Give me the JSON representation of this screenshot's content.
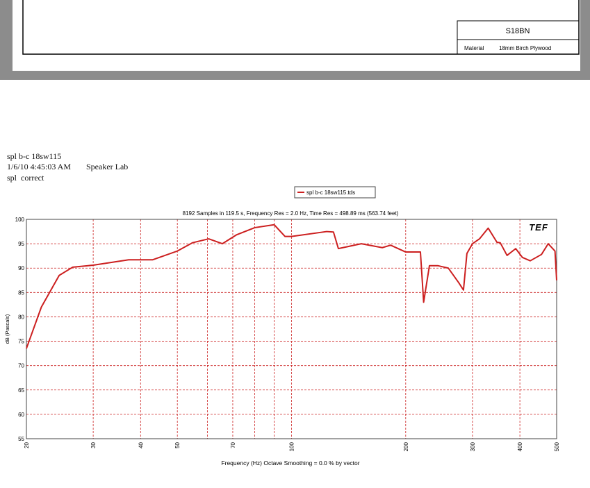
{
  "drawing": {
    "part": "S18BN",
    "material_label": "Material",
    "material": "18mm Birch Plywood"
  },
  "header": {
    "lines": [
      "spl b-c 18sw115",
      "1/6/10 4:45:03 AM",
      "Speaker Lab",
      "spl  correct"
    ]
  },
  "chart_data": {
    "type": "line",
    "subtitle": "8192 Samples in 119.5 s, Frequency Res = 2.0 Hz, Time Res = 498.89 ms (563.74 feet)",
    "x_label": "Frequency (Hz) Octave Smoothing = 0.0 % by vector",
    "y_label": "dB (Pascals)",
    "logo": "TEF",
    "xscale": "log",
    "xlim": [
      20,
      500
    ],
    "ylim": [
      55,
      100
    ],
    "xticks": [
      20,
      30,
      40,
      50,
      70,
      100,
      200,
      300,
      400,
      500
    ],
    "xminor": [
      60,
      80,
      90
    ],
    "yticks": [
      55,
      60,
      65,
      70,
      75,
      80,
      85,
      90,
      95,
      100
    ],
    "grid": true,
    "legend": "top",
    "series": [
      {
        "name": "spl b-c 18sw115.tds",
        "color": "#cc1f1f",
        "x": [
          20,
          21.9,
          24.4,
          26.5,
          30,
          37.2,
          43,
          50,
          54.8,
          60.5,
          65.7,
          71.5,
          80,
          90,
          96.1,
          100,
          123.8,
          129,
          132.9,
          152.8,
          173.5,
          182.5,
          200,
          218.7,
          223,
          231,
          243,
          259,
          276,
          284,
          290,
          300,
          313,
          330,
          348,
          355,
          370,
          390,
          406,
          426,
          456,
          475,
          495,
          500
        ],
        "values": [
          73.5,
          82,
          88.5,
          90.2,
          90.6,
          91.7,
          91.7,
          93.5,
          95.2,
          96,
          95,
          96.8,
          98.3,
          98.9,
          96.5,
          96.5,
          97.5,
          97.4,
          94,
          95,
          94.2,
          94.7,
          93.3,
          93.3,
          83,
          90.5,
          90.5,
          90,
          87,
          85.5,
          93,
          95,
          96,
          98.2,
          95.3,
          95.2,
          92.6,
          94,
          92.2,
          91.5,
          92.8,
          95,
          93.5,
          87.5
        ]
      }
    ]
  }
}
